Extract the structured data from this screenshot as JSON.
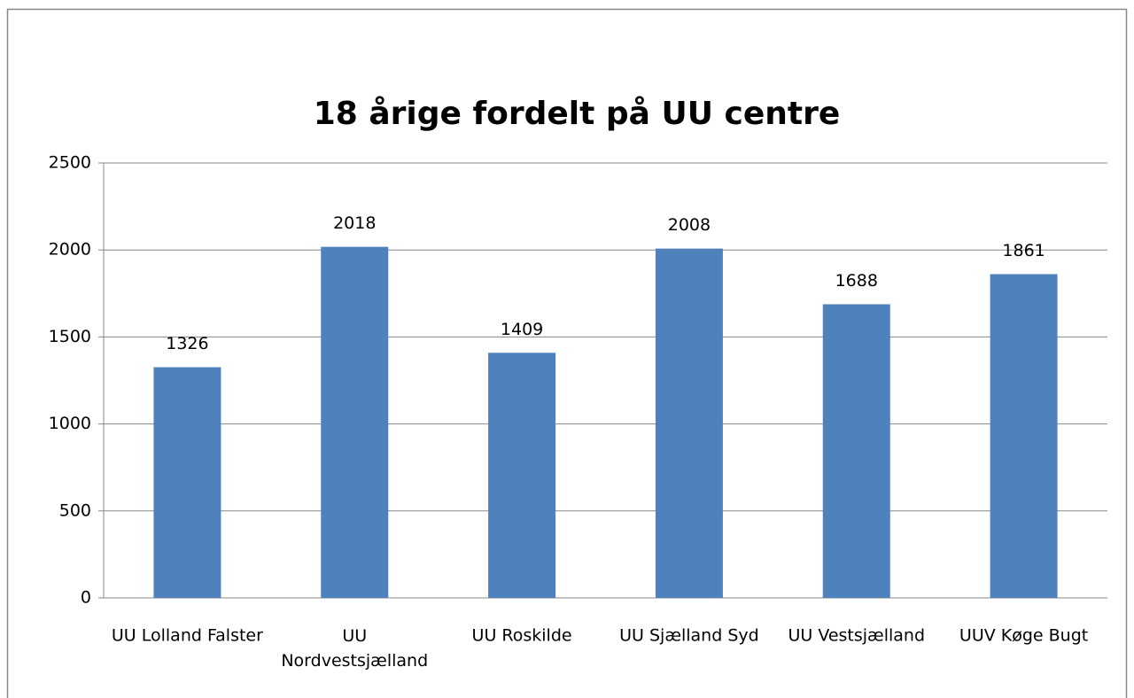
{
  "chart_data": {
    "type": "bar",
    "title": "18 årige fordelt på UU centre",
    "categories": [
      "UU Lolland Falster",
      "UU Nordvestsjælland",
      "UU Roskilde",
      "UU Sjælland Syd",
      "UU Vestsjælland",
      "UUV Køge Bugt"
    ],
    "values": [
      1326,
      2018,
      1409,
      2008,
      1688,
      1861
    ],
    "color": "#4f81bd",
    "ylim": [
      0,
      2500
    ],
    "yticks": [
      0,
      500,
      1000,
      1500,
      2000,
      2500
    ],
    "grid": true
  }
}
